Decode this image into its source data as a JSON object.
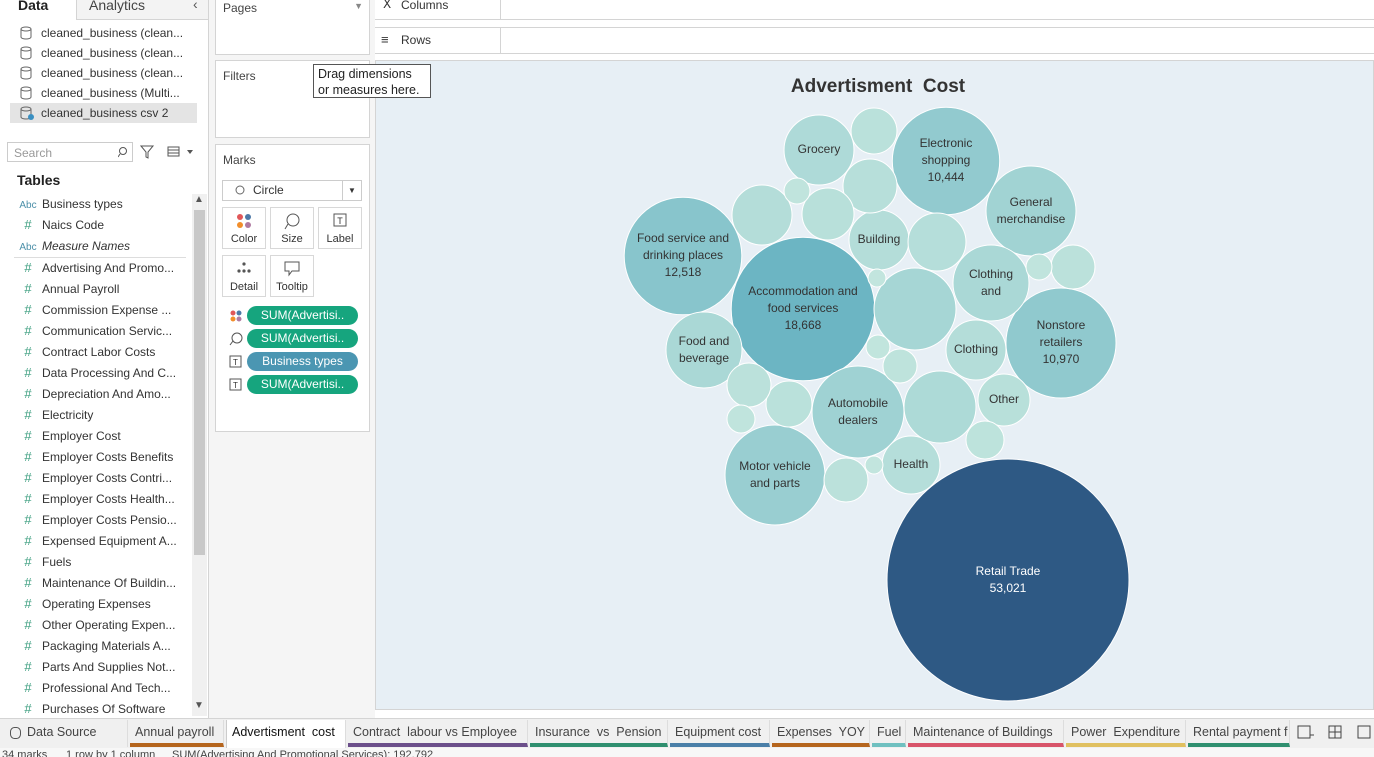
{
  "data_pane": {
    "tabs": [
      "Data",
      "Analytics"
    ],
    "sources": [
      "cleaned_business (clean...",
      "cleaned_business (clean...",
      "cleaned_business (clean...",
      "cleaned_business (Multi...",
      "cleaned_business csv 2"
    ],
    "search_placeholder": "Search",
    "tables_heading": "Tables",
    "dimensions": [
      {
        "icon": "Abc",
        "name": "Business types"
      },
      {
        "icon": "#",
        "name": "Naics Code"
      },
      {
        "icon": "Abc",
        "name": "Measure Names"
      }
    ],
    "measures": [
      {
        "icon": "#",
        "name": "Advertising And Promo..."
      },
      {
        "icon": "#",
        "name": "Annual Payroll"
      },
      {
        "icon": "#",
        "name": "Commission Expense ..."
      },
      {
        "icon": "#",
        "name": "Communication Servic..."
      },
      {
        "icon": "#",
        "name": "Contract Labor Costs"
      },
      {
        "icon": "#",
        "name": "Data Processing And C..."
      },
      {
        "icon": "#",
        "name": "Depreciation And Amo..."
      },
      {
        "icon": "#",
        "name": "Electricity"
      },
      {
        "icon": "#",
        "name": "Employer Cost"
      },
      {
        "icon": "#",
        "name": "Employer Costs Benefits"
      },
      {
        "icon": "#",
        "name": "Employer Costs Contri..."
      },
      {
        "icon": "#",
        "name": "Employer Costs Health..."
      },
      {
        "icon": "#",
        "name": "Employer Costs Pensio..."
      },
      {
        "icon": "#",
        "name": "Expensed Equipment A..."
      },
      {
        "icon": "#",
        "name": "Fuels"
      },
      {
        "icon": "#",
        "name": "Maintenance Of Buildin..."
      },
      {
        "icon": "#",
        "name": "Operating Expenses"
      },
      {
        "icon": "#",
        "name": "Other Operating Expen..."
      },
      {
        "icon": "#",
        "name": "Packaging Materials A..."
      },
      {
        "icon": "#",
        "name": "Parts And Supplies Not..."
      },
      {
        "icon": "#",
        "name": "Professional And Tech..."
      },
      {
        "icon": "#",
        "name": "Purchases Of Software"
      }
    ]
  },
  "pages_shelf": "Pages",
  "filters": {
    "title": "Filters",
    "hint": [
      "Drag dimensions",
      "or measures here."
    ]
  },
  "marks": {
    "title": "Marks",
    "mark_type": "Circle",
    "buttons": [
      "Color",
      "Size",
      "Label",
      "Detail",
      "Tooltip"
    ],
    "pills": [
      {
        "kind": "color",
        "text": "SUM(Advertisi.."
      },
      {
        "kind": "size",
        "text": "SUM(Advertisi.."
      },
      {
        "kind": "label",
        "text": "Business types"
      },
      {
        "kind": "label",
        "text": "SUM(Advertisi.."
      }
    ]
  },
  "shelves": {
    "columns": "Columns",
    "rows": "Rows"
  },
  "chart_data": {
    "type": "bubble",
    "title": "Advertisment  Cost",
    "categories": [
      "Retail Trade",
      "Accommodation and food services",
      "Food service and drinking places",
      "Nonstore retailers",
      "Electronic shopping",
      "General merchandise",
      "Motor vehicle and parts",
      "Automobile dealers",
      "Grocery",
      "Food and beverage",
      "Clothing and",
      "Clothing",
      "Building",
      "Health",
      "Other",
      null,
      null,
      null,
      null,
      null,
      null,
      null,
      null,
      null,
      null,
      null,
      null,
      null,
      null,
      null,
      null,
      null,
      null,
      null
    ],
    "values": [
      53021,
      18668,
      12518,
      10970,
      10444,
      7330,
      9050,
      7660,
      4430,
      5230,
      5230,
      3260,
      3260,
      3040,
      2450,
      6090,
      4690,
      3260,
      2640,
      2450,
      3040,
      1750,
      1910,
      1910,
      1750,
      1750,
      1310,
      1050,
      610,
      710,
      610,
      520,
      290,
      290
    ],
    "value_labels": [
      "53,021",
      "18,668",
      "12,518",
      "10,970",
      "10,444",
      null,
      null,
      null,
      null,
      null,
      null,
      null,
      null,
      null,
      null,
      null,
      null,
      null,
      null,
      null,
      null,
      null,
      null,
      null,
      null,
      null,
      null,
      null,
      null,
      null,
      null,
      null,
      null,
      null
    ],
    "colors": [
      "#c3e6de",
      "#6cb5c3",
      "#2e5984"
    ]
  },
  "sheet_tabs": [
    {
      "name": "Data Source",
      "color": null
    },
    {
      "name": "Annual payroll",
      "color": "#b5651d"
    },
    {
      "name": "Advertisment  cost",
      "color": null,
      "active": true
    },
    {
      "name": "Contract  labour vs Employee",
      "color": "#6b4f8a"
    },
    {
      "name": "Insurance  vs  Pension",
      "color": "#2f8f6f"
    },
    {
      "name": "Equipment cost",
      "color": "#4a7fa8"
    },
    {
      "name": "Expenses  YOY",
      "color": "#b5651d"
    },
    {
      "name": "Fuel",
      "color": "#6fc0c0"
    },
    {
      "name": "Maintenance of Buildings",
      "color": "#d8546a"
    },
    {
      "name": "Power  Expenditure",
      "color": "#e0c060"
    },
    {
      "name": "Rental payment f",
      "color": "#2f8f6f"
    }
  ],
  "status_bar": [
    "34 marks",
    "1 row by 1 column",
    "SUM(Advertising And Promotional Services): 192,792"
  ]
}
